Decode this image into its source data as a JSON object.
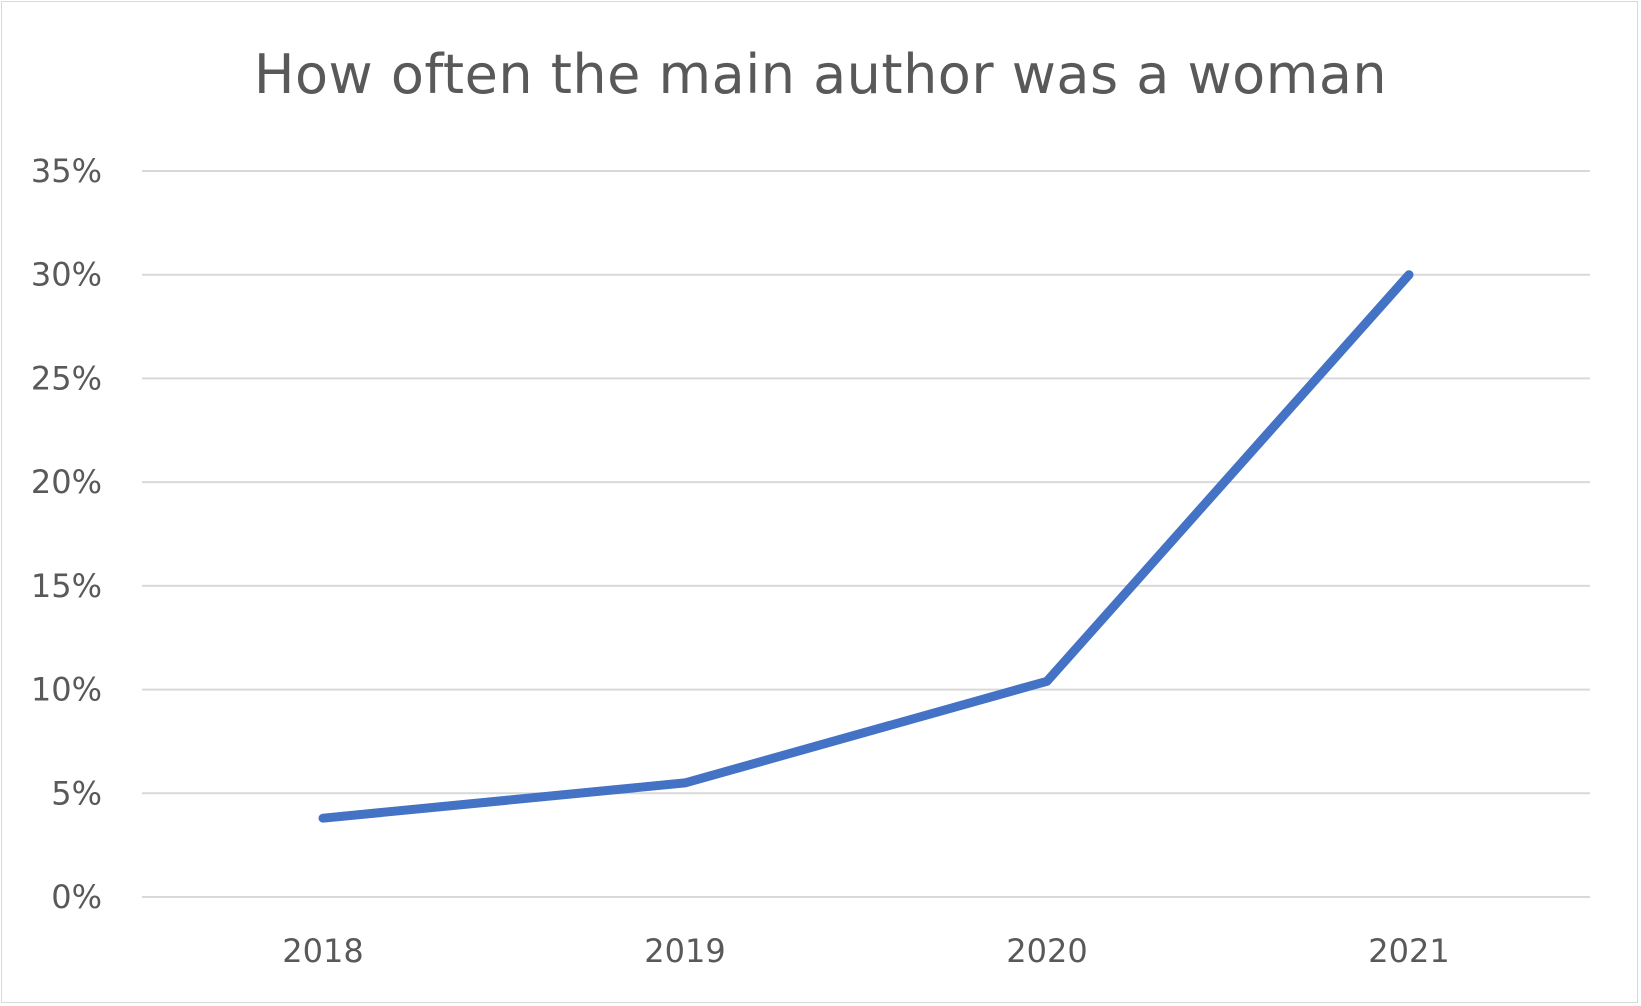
{
  "chart_data": {
    "type": "line",
    "title": "How often the main author was a woman",
    "xlabel": "",
    "ylabel": "",
    "categories": [
      "2018",
      "2019",
      "2020",
      "2021"
    ],
    "series": [
      {
        "values": [
          0.038,
          0.055,
          0.104,
          0.3
        ],
        "color": "#4472c4"
      }
    ],
    "ylim": [
      0,
      0.35
    ],
    "yticks": [
      0,
      0.05,
      0.1,
      0.15,
      0.2,
      0.25,
      0.3,
      0.35
    ],
    "ytick_labels": [
      "0%",
      "5%",
      "10%",
      "15%",
      "20%",
      "25%",
      "30%",
      "35%"
    ],
    "grid": true,
    "legend": "none"
  }
}
